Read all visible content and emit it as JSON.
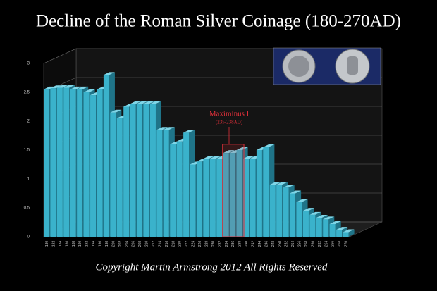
{
  "chart_data": {
    "type": "bar3d",
    "title": "Decline of the Roman Silver Coinage (180-270AD)",
    "footer": "Copyright Martin Armstrong 2012 All Rights Reserved",
    "annotation": "Maximinus I",
    "annotation_sub": "(235-238AD)",
    "color": "#3ab2cb",
    "categories": [
      "180",
      "182",
      "184",
      "186",
      "188",
      "190",
      "192",
      "194",
      "196",
      "198",
      "200",
      "202",
      "204",
      "206",
      "208",
      "210",
      "212",
      "214",
      "216",
      "218",
      "220",
      "222",
      "224",
      "226",
      "228",
      "230",
      "232",
      "234",
      "236",
      "238",
      "240",
      "242",
      "244",
      "246",
      "248",
      "250",
      "252",
      "254",
      "256",
      "258",
      "260",
      "262",
      "264",
      "266",
      "268",
      "270"
    ],
    "values": [
      2.55,
      2.57,
      2.58,
      2.58,
      2.55,
      2.55,
      2.5,
      2.45,
      2.55,
      2.8,
      2.15,
      2.05,
      2.25,
      2.3,
      2.3,
      2.3,
      2.3,
      1.85,
      1.85,
      1.6,
      1.65,
      1.8,
      1.25,
      1.3,
      1.35,
      1.35,
      1.35,
      1.45,
      1.45,
      1.5,
      1.35,
      1.35,
      1.5,
      1.55,
      0.9,
      0.9,
      0.85,
      0.75,
      0.6,
      0.45,
      0.38,
      0.33,
      0.3,
      0.22,
      0.12,
      0.08
    ],
    "ylim": [
      0,
      3
    ],
    "yticks": [
      0,
      0.5,
      1,
      1.5,
      2,
      2.5,
      3
    ],
    "grid": true
  }
}
